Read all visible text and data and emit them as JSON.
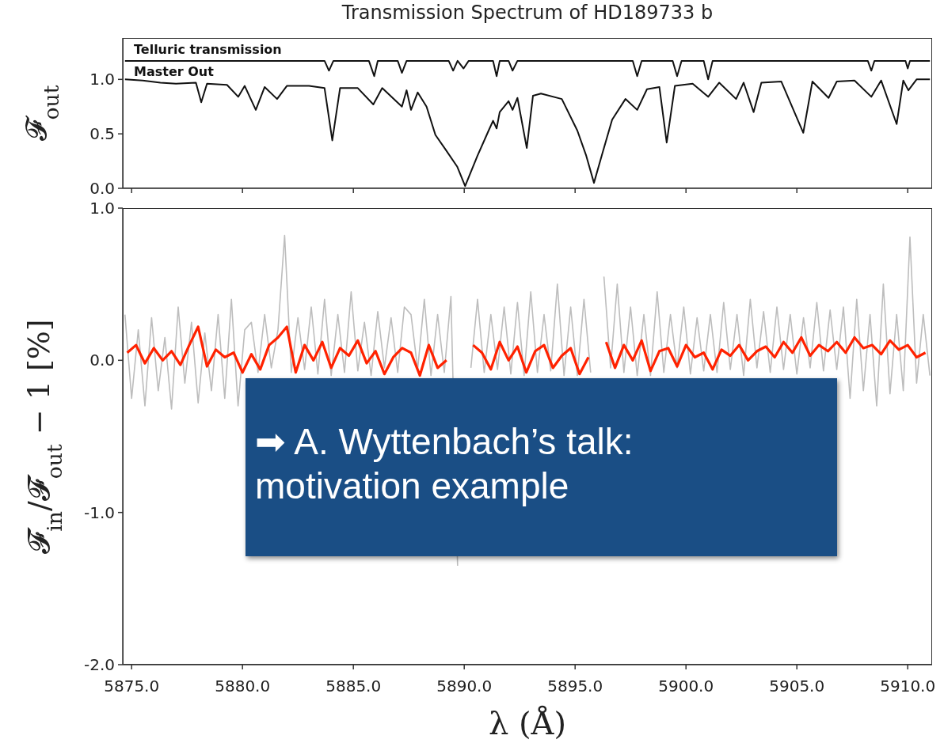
{
  "chart_data": [
    {
      "type": "line",
      "title": "Transmission Spectrum of HD189733 b",
      "ylabel": "𝓕$_{out}$",
      "xlim": [
        5874.6,
        5911.1
      ],
      "xticks": [
        5875,
        5880,
        5885,
        5890,
        5895,
        5900,
        5905,
        5910
      ],
      "ylim": [
        0,
        1.38
      ],
      "yticks": [
        {
          "value": 0,
          "label": "0.0"
        },
        {
          "value": 0.5,
          "label": "0.5"
        },
        {
          "value": 1,
          "label": "1.0"
        }
      ],
      "tick_labels": "y",
      "series": [
        {
          "name": "Telluric transmission",
          "color": "#111111",
          "x": [
            5874.7,
            5883.7,
            5883.9,
            5884.1,
            5885.7,
            5885.94,
            5886.1,
            5887.0,
            5887.19,
            5887.4,
            5889.3,
            5889.5,
            5889.7,
            5889.97,
            5890.2,
            5891.3,
            5891.46,
            5891.6,
            5892.0,
            5892.18,
            5892.4,
            5897.6,
            5897.8,
            5898.0,
            5899.4,
            5899.6,
            5899.8,
            5900.8,
            5901.0,
            5901.2,
            5908.2,
            5908.36,
            5908.5,
            5909.9,
            5910.0,
            5910.1,
            5911.0
          ],
          "values": [
            1.17,
            1.17,
            1.08,
            1.17,
            1.17,
            1.03,
            1.17,
            1.17,
            1.06,
            1.17,
            1.17,
            1.08,
            1.17,
            1.1,
            1.17,
            1.17,
            1.03,
            1.17,
            1.17,
            1.08,
            1.17,
            1.17,
            1.03,
            1.17,
            1.17,
            1.03,
            1.17,
            1.17,
            1.0,
            1.17,
            1.17,
            1.08,
            1.17,
            1.17,
            1.1,
            1.17,
            1.17
          ]
        },
        {
          "name": "Master Out",
          "color": "#111111",
          "x": [
            5874.7,
            5875.5,
            5876.3,
            5877.0,
            5877.9,
            5878.14,
            5878.4,
            5879.3,
            5879.81,
            5880.1,
            5880.6,
            5881.0,
            5881.56,
            5882.0,
            5883.0,
            5883.7,
            5884.05,
            5884.4,
            5885.2,
            5885.9,
            5886.3,
            5887.19,
            5887.4,
            5887.6,
            5887.9,
            5888.3,
            5888.7,
            5889.18,
            5889.68,
            5890.04,
            5890.6,
            5891.1,
            5891.3,
            5891.46,
            5891.6,
            5892.0,
            5892.18,
            5892.4,
            5892.82,
            5893.1,
            5893.46,
            5894.4,
            5895.1,
            5895.5,
            5895.85,
            5896.2,
            5896.67,
            5897.27,
            5897.8,
            5898.24,
            5898.8,
            5899.13,
            5899.5,
            5900.3,
            5901.0,
            5901.5,
            5902.26,
            5902.6,
            5903.05,
            5903.4,
            5904.3,
            5905.29,
            5905.7,
            5906.43,
            5906.8,
            5907.6,
            5908.36,
            5908.8,
            5909.5,
            5909.8,
            5910.03,
            5910.4,
            5911.0
          ],
          "values": [
            1.0,
            0.99,
            0.97,
            0.96,
            0.97,
            0.79,
            0.96,
            0.95,
            0.84,
            0.94,
            0.72,
            0.93,
            0.82,
            0.94,
            0.94,
            0.92,
            0.44,
            0.92,
            0.92,
            0.77,
            0.92,
            0.75,
            0.9,
            0.72,
            0.88,
            0.75,
            0.49,
            0.35,
            0.2,
            0.02,
            0.3,
            0.53,
            0.62,
            0.55,
            0.7,
            0.8,
            0.72,
            0.83,
            0.37,
            0.85,
            0.87,
            0.82,
            0.53,
            0.3,
            0.05,
            0.3,
            0.63,
            0.82,
            0.72,
            0.91,
            0.93,
            0.42,
            0.94,
            0.96,
            0.84,
            0.97,
            0.82,
            0.97,
            0.7,
            0.97,
            0.98,
            0.51,
            0.98,
            0.83,
            0.98,
            0.99,
            0.84,
            0.99,
            0.59,
            0.99,
            0.9,
            1.0,
            1.0
          ]
        }
      ]
    },
    {
      "type": "line",
      "xlabel": "λ (Å)",
      "ylabel": "𝓕$_{in}$/𝓕$_{out}$ − 1 [%]",
      "xlim": [
        5874.6,
        5911.1
      ],
      "xticks": [
        {
          "value": 5875,
          "label": "5875.0"
        },
        {
          "value": 5880,
          "label": "5880.0"
        },
        {
          "value": 5885,
          "label": "5885.0"
        },
        {
          "value": 5890,
          "label": "5890.0"
        },
        {
          "value": 5895,
          "label": "5895.0"
        },
        {
          "value": 5900,
          "label": "5900.0"
        },
        {
          "value": 5905,
          "label": "5905.0"
        },
        {
          "value": 5910,
          "label": "5910.0"
        }
      ],
      "ylim": [
        -2,
        1
      ],
      "yticks": [
        {
          "value": -2,
          "label": "-2.0"
        },
        {
          "value": -1,
          "label": "-1.0"
        },
        {
          "value": 0,
          "label": "0.0"
        },
        {
          "value": 1,
          "label": "1.0"
        }
      ],
      "annotations": [
        "➡ A. Wyttenbach’s talk: motivation example"
      ],
      "series": [
        {
          "color": "#bdbdbd",
          "x": [
            5874.7,
            5875.0,
            5875.3,
            5875.6,
            5875.9,
            5876.2,
            5876.5,
            5876.8,
            5877.1,
            5877.4,
            5877.7,
            5878.0,
            5878.3,
            5878.6,
            5878.9,
            5879.2,
            5879.5,
            5879.8,
            5880.1,
            5880.4,
            5880.7,
            5881.0,
            5881.3,
            5881.6,
            5881.9,
            5882.2,
            5882.5,
            5882.8,
            5883.1,
            5883.4,
            5883.7,
            5884.0,
            5884.3,
            5884.6,
            5884.9,
            5885.2,
            5885.5,
            5885.8,
            5886.1,
            5886.4,
            5886.7,
            5887.0,
            5887.3,
            5887.6,
            5887.9,
            5888.2,
            5888.5,
            5888.8,
            5889.1,
            5889.4,
            5889.7,
            5890.0,
            5890.3,
            5890.6,
            5890.9,
            5891.2,
            5891.5,
            5891.8,
            5892.1,
            5892.4,
            5892.7,
            5893.0,
            5893.3,
            5893.6,
            5893.9,
            5894.2,
            5894.5,
            5894.8,
            5895.1,
            5895.4,
            5895.7,
            5896.0,
            5896.3,
            5896.6,
            5896.9,
            5897.2,
            5897.5,
            5897.8,
            5898.1,
            5898.4,
            5898.7,
            5899.0,
            5899.3,
            5899.6,
            5899.9,
            5900.2,
            5900.5,
            5900.8,
            5901.1,
            5901.4,
            5901.7,
            5902.0,
            5902.3,
            5902.6,
            5902.9,
            5903.2,
            5903.5,
            5903.8,
            5904.1,
            5904.4,
            5904.7,
            5905.0,
            5905.3,
            5905.6,
            5905.9,
            5906.2,
            5906.5,
            5906.8,
            5907.1,
            5907.4,
            5907.7,
            5908.0,
            5908.3,
            5908.6,
            5908.9,
            5909.2,
            5909.5,
            5909.8,
            5910.1,
            5910.4,
            5910.7,
            5911.0
          ],
          "values": [
            0.3,
            -0.25,
            0.2,
            -0.3,
            0.28,
            -0.2,
            0.15,
            -0.32,
            0.35,
            -0.15,
            0.25,
            -0.28,
            0.18,
            -0.2,
            0.3,
            -0.25,
            0.4,
            -0.3,
            0.2,
            0.25,
            -0.08,
            0.3,
            -0.05,
            0.2,
            0.82,
            -0.08,
            0.28,
            -0.06,
            0.35,
            -0.09,
            0.4,
            -0.1,
            0.3,
            -0.08,
            0.45,
            -0.07,
            0.25,
            -0.1,
            0.32,
            -0.05,
            0.28,
            -0.08,
            0.35,
            0.3,
            -0.06,
            0.4,
            -0.1,
            0.3,
            -0.08,
            0.42,
            -1.35,
            null,
            -0.05,
            0.4,
            -0.08,
            0.3,
            -0.06,
            0.35,
            -0.09,
            0.38,
            -0.1,
            0.45,
            -0.08,
            0.3,
            -0.07,
            0.5,
            -0.1,
            0.35,
            -0.1,
            0.4,
            -0.08,
            null,
            0.55,
            -0.05,
            0.5,
            -0.08,
            0.35,
            -0.1,
            0.3,
            -0.1,
            0.45,
            -0.08,
            0.3,
            -0.05,
            0.35,
            -0.09,
            0.28,
            -0.07,
            0.3,
            -0.08,
            0.38,
            -0.06,
            0.3,
            -0.1,
            0.4,
            -0.05,
            0.32,
            -0.08,
            0.35,
            -0.06,
            0.3,
            -0.09,
            0.28,
            -0.05,
            0.38,
            -0.07,
            0.33,
            -0.06,
            0.35,
            -0.25,
            0.4,
            -0.2,
            0.3,
            -0.3,
            0.5,
            -0.22,
            0.3,
            -0.2,
            0.81,
            -0.15,
            0.3,
            -0.1
          ]
        },
        {
          "color": "#ff2200",
          "x": [
            5874.8,
            5875.2,
            5875.6,
            5876.0,
            5876.4,
            5876.8,
            5877.2,
            5877.6,
            5878.0,
            5878.4,
            5878.8,
            5879.2,
            5879.6,
            5880.0,
            5880.4,
            5880.8,
            5881.2,
            5881.6,
            5882.0,
            5882.4,
            5882.8,
            5883.2,
            5883.6,
            5884.0,
            5884.4,
            5884.8,
            5885.2,
            5885.6,
            5886.0,
            5886.4,
            5886.8,
            5887.2,
            5887.6,
            5888.0,
            5888.4,
            5888.8,
            5889.2,
            5889.6,
            5890.0,
            5890.4,
            5890.8,
            5891.2,
            5891.6,
            5892.0,
            5892.4,
            5892.8,
            5893.2,
            5893.6,
            5894.0,
            5894.4,
            5894.8,
            5895.2,
            5895.6,
            5896.0,
            5896.4,
            5896.8,
            5897.2,
            5897.6,
            5898.0,
            5898.4,
            5898.8,
            5899.2,
            5899.6,
            5900.0,
            5900.4,
            5900.8,
            5901.2,
            5901.6,
            5902.0,
            5902.4,
            5902.8,
            5903.2,
            5903.6,
            5904.0,
            5904.4,
            5904.8,
            5905.2,
            5905.6,
            5906.0,
            5906.4,
            5906.8,
            5907.2,
            5907.6,
            5908.0,
            5908.4,
            5908.8,
            5909.2,
            5909.6,
            5910.0,
            5910.4,
            5910.8
          ],
          "values": [
            0.05,
            0.1,
            -0.02,
            0.08,
            0.0,
            0.06,
            -0.03,
            0.1,
            0.22,
            -0.04,
            0.07,
            0.02,
            0.05,
            -0.08,
            0.04,
            -0.06,
            0.1,
            0.15,
            0.22,
            -0.08,
            0.1,
            0.0,
            0.12,
            -0.05,
            0.08,
            0.03,
            0.13,
            -0.02,
            0.06,
            -0.09,
            0.02,
            0.08,
            0.05,
            -0.1,
            0.1,
            -0.05,
            0.0,
            null,
            null,
            0.1,
            0.05,
            -0.06,
            0.12,
            0.0,
            0.09,
            -0.08,
            0.06,
            0.1,
            -0.05,
            0.03,
            0.08,
            -0.09,
            0.02,
            null,
            0.12,
            -0.05,
            0.1,
            0.0,
            0.13,
            -0.07,
            0.06,
            0.08,
            -0.04,
            0.1,
            0.02,
            0.05,
            -0.06,
            0.07,
            0.03,
            0.1,
            0.0,
            0.06,
            0.09,
            0.02,
            0.12,
            0.05,
            0.15,
            0.03,
            0.1,
            0.06,
            0.12,
            0.05,
            0.15,
            0.08,
            0.1,
            0.04,
            0.13,
            0.07,
            0.1,
            0.02,
            0.05
          ]
        }
      ]
    }
  ]
}
